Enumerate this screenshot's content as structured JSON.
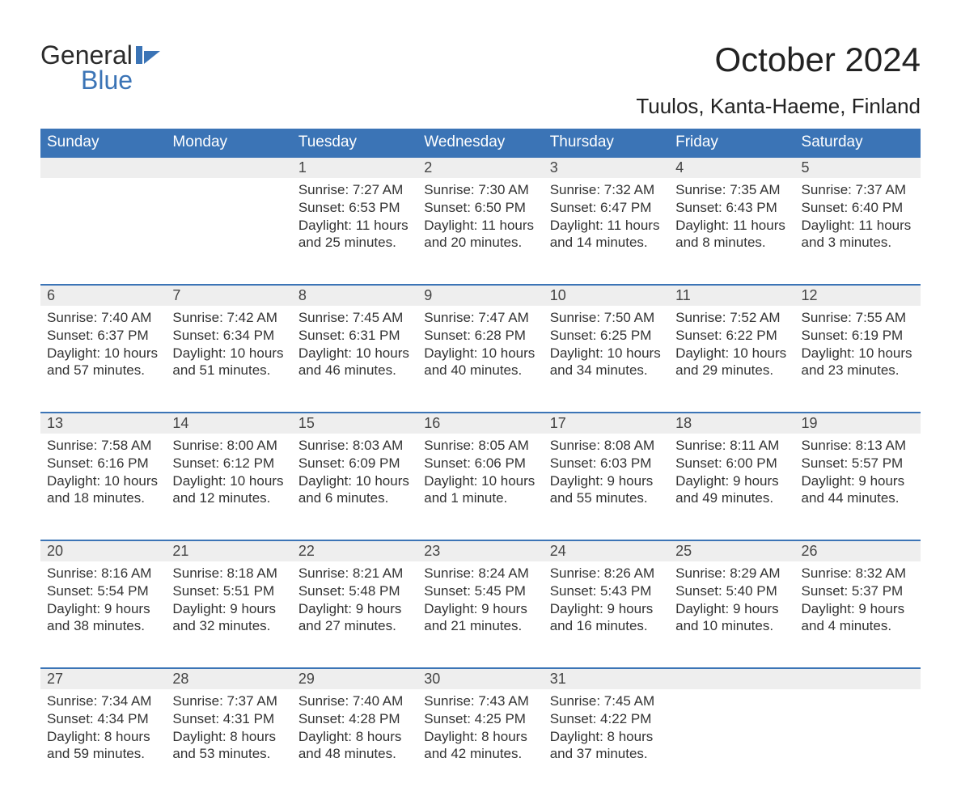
{
  "brand": {
    "name1": "General",
    "name2": "Blue",
    "colors": {
      "blue": "#3b74b6",
      "dark": "#2b2b2b"
    }
  },
  "title": "October 2024",
  "location": "Tuulos, Kanta-Haeme, Finland",
  "colors": {
    "header_bg": "#3b74b6",
    "header_text": "#ffffff",
    "daynum_bg": "#eeeeee",
    "daynum_border": "#3b74b6",
    "body_text": "#333333",
    "page_bg": "#ffffff"
  },
  "typography": {
    "month_title_fontsize": 42,
    "location_fontsize": 26,
    "header_fontsize": 19,
    "daynum_fontsize": 18,
    "cell_fontsize": 17
  },
  "table": {
    "type": "calendar",
    "columns": [
      "Sunday",
      "Monday",
      "Tuesday",
      "Wednesday",
      "Thursday",
      "Friday",
      "Saturday"
    ],
    "weeks": [
      [
        null,
        null,
        {
          "n": "1",
          "sunrise": "Sunrise: 7:27 AM",
          "sunset": "Sunset: 6:53 PM",
          "day": "Daylight: 11 hours and 25 minutes."
        },
        {
          "n": "2",
          "sunrise": "Sunrise: 7:30 AM",
          "sunset": "Sunset: 6:50 PM",
          "day": "Daylight: 11 hours and 20 minutes."
        },
        {
          "n": "3",
          "sunrise": "Sunrise: 7:32 AM",
          "sunset": "Sunset: 6:47 PM",
          "day": "Daylight: 11 hours and 14 minutes."
        },
        {
          "n": "4",
          "sunrise": "Sunrise: 7:35 AM",
          "sunset": "Sunset: 6:43 PM",
          "day": "Daylight: 11 hours and 8 minutes."
        },
        {
          "n": "5",
          "sunrise": "Sunrise: 7:37 AM",
          "sunset": "Sunset: 6:40 PM",
          "day": "Daylight: 11 hours and 3 minutes."
        }
      ],
      [
        {
          "n": "6",
          "sunrise": "Sunrise: 7:40 AM",
          "sunset": "Sunset: 6:37 PM",
          "day": "Daylight: 10 hours and 57 minutes."
        },
        {
          "n": "7",
          "sunrise": "Sunrise: 7:42 AM",
          "sunset": "Sunset: 6:34 PM",
          "day": "Daylight: 10 hours and 51 minutes."
        },
        {
          "n": "8",
          "sunrise": "Sunrise: 7:45 AM",
          "sunset": "Sunset: 6:31 PM",
          "day": "Daylight: 10 hours and 46 minutes."
        },
        {
          "n": "9",
          "sunrise": "Sunrise: 7:47 AM",
          "sunset": "Sunset: 6:28 PM",
          "day": "Daylight: 10 hours and 40 minutes."
        },
        {
          "n": "10",
          "sunrise": "Sunrise: 7:50 AM",
          "sunset": "Sunset: 6:25 PM",
          "day": "Daylight: 10 hours and 34 minutes."
        },
        {
          "n": "11",
          "sunrise": "Sunrise: 7:52 AM",
          "sunset": "Sunset: 6:22 PM",
          "day": "Daylight: 10 hours and 29 minutes."
        },
        {
          "n": "12",
          "sunrise": "Sunrise: 7:55 AM",
          "sunset": "Sunset: 6:19 PM",
          "day": "Daylight: 10 hours and 23 minutes."
        }
      ],
      [
        {
          "n": "13",
          "sunrise": "Sunrise: 7:58 AM",
          "sunset": "Sunset: 6:16 PM",
          "day": "Daylight: 10 hours and 18 minutes."
        },
        {
          "n": "14",
          "sunrise": "Sunrise: 8:00 AM",
          "sunset": "Sunset: 6:12 PM",
          "day": "Daylight: 10 hours and 12 minutes."
        },
        {
          "n": "15",
          "sunrise": "Sunrise: 8:03 AM",
          "sunset": "Sunset: 6:09 PM",
          "day": "Daylight: 10 hours and 6 minutes."
        },
        {
          "n": "16",
          "sunrise": "Sunrise: 8:05 AM",
          "sunset": "Sunset: 6:06 PM",
          "day": "Daylight: 10 hours and 1 minute."
        },
        {
          "n": "17",
          "sunrise": "Sunrise: 8:08 AM",
          "sunset": "Sunset: 6:03 PM",
          "day": "Daylight: 9 hours and 55 minutes."
        },
        {
          "n": "18",
          "sunrise": "Sunrise: 8:11 AM",
          "sunset": "Sunset: 6:00 PM",
          "day": "Daylight: 9 hours and 49 minutes."
        },
        {
          "n": "19",
          "sunrise": "Sunrise: 8:13 AM",
          "sunset": "Sunset: 5:57 PM",
          "day": "Daylight: 9 hours and 44 minutes."
        }
      ],
      [
        {
          "n": "20",
          "sunrise": "Sunrise: 8:16 AM",
          "sunset": "Sunset: 5:54 PM",
          "day": "Daylight: 9 hours and 38 minutes."
        },
        {
          "n": "21",
          "sunrise": "Sunrise: 8:18 AM",
          "sunset": "Sunset: 5:51 PM",
          "day": "Daylight: 9 hours and 32 minutes."
        },
        {
          "n": "22",
          "sunrise": "Sunrise: 8:21 AM",
          "sunset": "Sunset: 5:48 PM",
          "day": "Daylight: 9 hours and 27 minutes."
        },
        {
          "n": "23",
          "sunrise": "Sunrise: 8:24 AM",
          "sunset": "Sunset: 5:45 PM",
          "day": "Daylight: 9 hours and 21 minutes."
        },
        {
          "n": "24",
          "sunrise": "Sunrise: 8:26 AM",
          "sunset": "Sunset: 5:43 PM",
          "day": "Daylight: 9 hours and 16 minutes."
        },
        {
          "n": "25",
          "sunrise": "Sunrise: 8:29 AM",
          "sunset": "Sunset: 5:40 PM",
          "day": "Daylight: 9 hours and 10 minutes."
        },
        {
          "n": "26",
          "sunrise": "Sunrise: 8:32 AM",
          "sunset": "Sunset: 5:37 PM",
          "day": "Daylight: 9 hours and 4 minutes."
        }
      ],
      [
        {
          "n": "27",
          "sunrise": "Sunrise: 7:34 AM",
          "sunset": "Sunset: 4:34 PM",
          "day": "Daylight: 8 hours and 59 minutes."
        },
        {
          "n": "28",
          "sunrise": "Sunrise: 7:37 AM",
          "sunset": "Sunset: 4:31 PM",
          "day": "Daylight: 8 hours and 53 minutes."
        },
        {
          "n": "29",
          "sunrise": "Sunrise: 7:40 AM",
          "sunset": "Sunset: 4:28 PM",
          "day": "Daylight: 8 hours and 48 minutes."
        },
        {
          "n": "30",
          "sunrise": "Sunrise: 7:43 AM",
          "sunset": "Sunset: 4:25 PM",
          "day": "Daylight: 8 hours and 42 minutes."
        },
        {
          "n": "31",
          "sunrise": "Sunrise: 7:45 AM",
          "sunset": "Sunset: 4:22 PM",
          "day": "Daylight: 8 hours and 37 minutes."
        },
        null,
        null
      ]
    ]
  }
}
